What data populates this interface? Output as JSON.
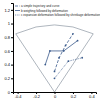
{
  "chart_data": {
    "type": "line",
    "xlim": [
      -0.45,
      0.45
    ],
    "xticks": [
      -0.4,
      -0.2,
      0,
      0.2,
      0.4
    ],
    "ylim": [
      0,
      1.3
    ],
    "yticks": [
      0,
      0.2,
      0.4,
      0.6,
      0.8,
      1,
      1.2
    ],
    "legend": "top-left",
    "series": [
      {
        "color": "#9aa3ad",
        "line_style": "solid",
        "x": [
          0,
          -0.42
        ],
        "values": [
          0,
          0.85
        ]
      },
      {
        "color": "#9aa3ad",
        "line_style": "solid",
        "x": [
          0,
          0.42
        ],
        "values": [
          0,
          0.85
        ]
      },
      {
        "color": "#9aa3ad",
        "line_style": "solid",
        "x": [
          -0.42,
          -0.2,
          0,
          0.2,
          0.42
        ],
        "values": [
          0.85,
          0.95,
          0.98,
          0.95,
          0.85
        ]
      },
      {
        "name": "a simple trajectory and curve",
        "color": "#3b5b8c",
        "line_style": "dashed",
        "marker": "circle",
        "x": [
          0,
          0.05,
          0.12,
          0.2
        ],
        "values": [
          0.3,
          0.5,
          0.68,
          0.85
        ]
      },
      {
        "name": "b weighing followed by deformation",
        "color": "#3b5b8c",
        "line_style": "solid",
        "marker": "circle",
        "x": [
          -0.1,
          -0.05,
          0.1,
          0.25
        ],
        "values": [
          0.4,
          0.6,
          0.6,
          0.75
        ]
      },
      {
        "name": "c expansion deformation followed by shrinkage deformation",
        "color": "#3b5b8c",
        "line_style": "dotted",
        "marker": "circle",
        "x": [
          0,
          0.15,
          0.3
        ],
        "values": [
          0.2,
          0.45,
          0.5
        ]
      }
    ]
  }
}
